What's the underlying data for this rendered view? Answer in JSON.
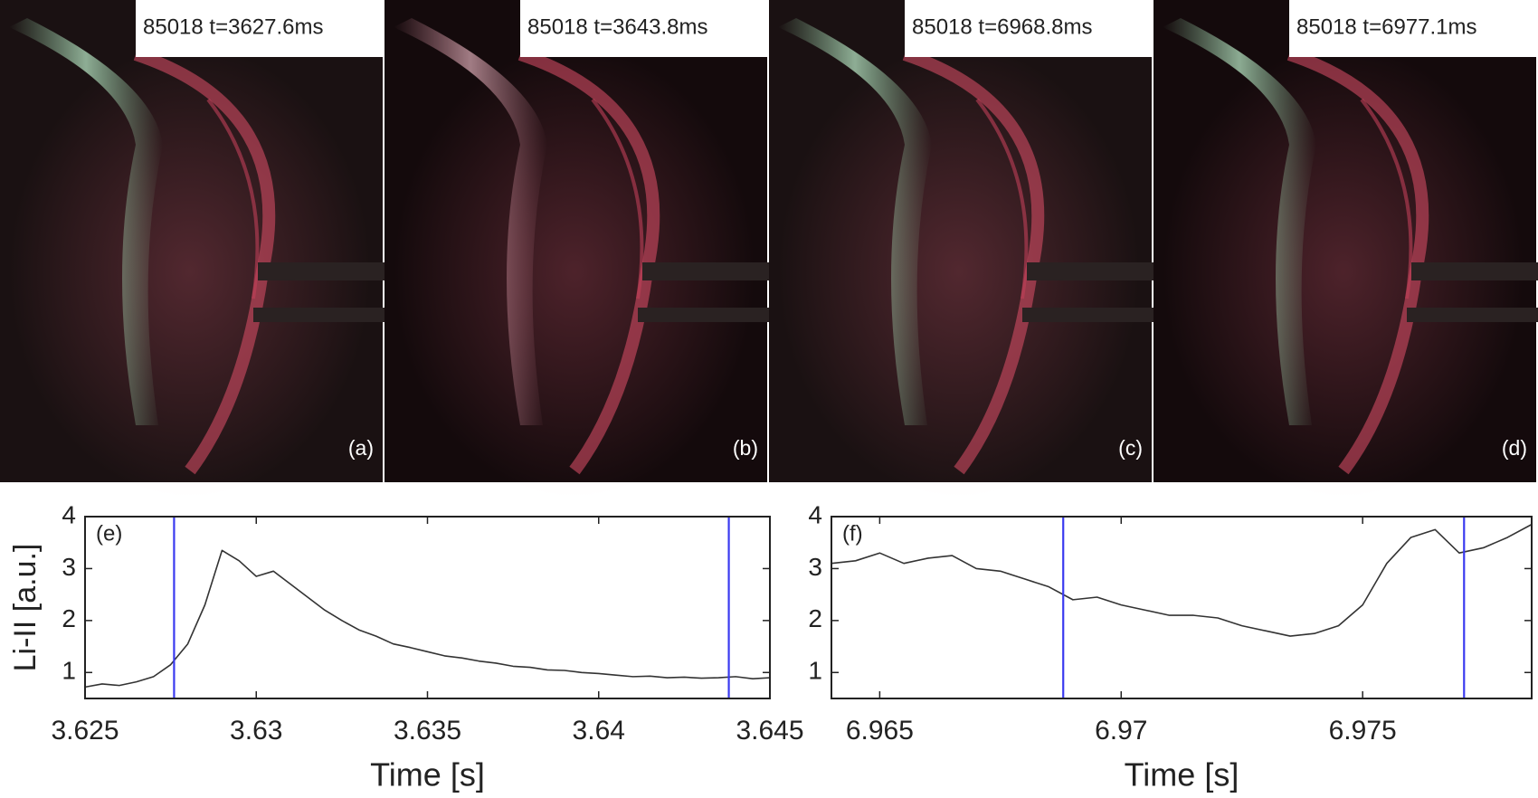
{
  "panels": [
    {
      "caption": "85018 t=3627.6ms",
      "label": "(a)"
    },
    {
      "caption": "85018 t=3643.8ms",
      "label": "(b)"
    },
    {
      "caption": "85018 t=6968.8ms",
      "label": "(c)"
    },
    {
      "caption": "85018 t=6977.1ms",
      "label": "(d)"
    }
  ],
  "chart_data": [
    {
      "type": "line",
      "annotation": "(e)",
      "xlabel": "Time [s]",
      "ylabel": "Li-II [a.u.]",
      "color": "#333333",
      "x": [
        3.625,
        3.6255,
        3.626,
        3.6265,
        3.627,
        3.6275,
        3.628,
        3.6285,
        3.629,
        3.6295,
        3.63,
        3.6305,
        3.631,
        3.6315,
        3.632,
        3.6325,
        3.633,
        3.6335,
        3.634,
        3.6345,
        3.635,
        3.6355,
        3.636,
        3.6365,
        3.637,
        3.6375,
        3.638,
        3.6385,
        3.639,
        3.6395,
        3.64,
        3.6405,
        3.641,
        3.6415,
        3.642,
        3.6425,
        3.643,
        3.6435,
        3.644,
        3.6445,
        3.645
      ],
      "values": [
        0.72,
        0.78,
        0.75,
        0.82,
        0.92,
        1.15,
        1.55,
        2.3,
        3.35,
        3.15,
        2.85,
        2.95,
        2.7,
        2.45,
        2.2,
        2.0,
        1.82,
        1.7,
        1.55,
        1.48,
        1.4,
        1.32,
        1.28,
        1.22,
        1.18,
        1.12,
        1.1,
        1.05,
        1.04,
        1.0,
        0.98,
        0.95,
        0.92,
        0.93,
        0.9,
        0.91,
        0.89,
        0.9,
        0.92,
        0.88,
        0.9
      ],
      "xlim": [
        3.625,
        3.645
      ],
      "xticks": [
        3.625,
        3.63,
        3.635,
        3.64,
        3.645
      ],
      "ylim": [
        0.5,
        4
      ],
      "yticks": [
        1,
        2,
        3,
        4
      ],
      "vlines": {
        "color": "#3a3af0",
        "x": [
          3.6276,
          3.6438
        ]
      }
    },
    {
      "type": "line",
      "annotation": "(f)",
      "xlabel": "Time [s]",
      "color": "#333333",
      "x": [
        6.964,
        6.9645,
        6.965,
        6.9655,
        6.966,
        6.9665,
        6.967,
        6.9675,
        6.968,
        6.9685,
        6.969,
        6.9695,
        6.97,
        6.9705,
        6.971,
        6.9715,
        6.972,
        6.9725,
        6.973,
        6.9735,
        6.974,
        6.9745,
        6.975,
        6.9755,
        6.976,
        6.9765,
        6.977,
        6.9775,
        6.978,
        6.9785
      ],
      "values": [
        3.1,
        3.15,
        3.3,
        3.1,
        3.2,
        3.25,
        3.0,
        2.95,
        2.8,
        2.65,
        2.4,
        2.45,
        2.3,
        2.2,
        2.1,
        2.1,
        2.05,
        1.9,
        1.8,
        1.7,
        1.75,
        1.9,
        2.3,
        3.1,
        3.6,
        3.75,
        3.3,
        3.4,
        3.6,
        3.85
      ],
      "xlim": [
        6.964,
        6.9785
      ],
      "xticks": [
        6.965,
        6.97,
        6.975
      ],
      "ylim": [
        0.5,
        4
      ],
      "yticks": [
        1,
        2,
        3,
        4
      ],
      "vlines": {
        "color": "#3a3af0",
        "x": [
          6.9688,
          6.9771
        ]
      }
    }
  ]
}
